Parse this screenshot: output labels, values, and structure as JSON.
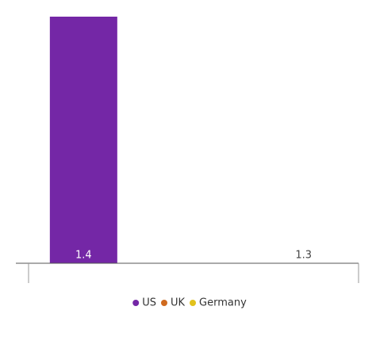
{
  "chart_data": {
    "type": "bar",
    "categories": [
      null
    ],
    "series": [
      {
        "name": "US",
        "color": "#7427a6",
        "values": [
          1.4
        ]
      },
      {
        "name": "UK",
        "color": "#cf6a1f",
        "values": [
          null
        ]
      },
      {
        "name": "Germany",
        "color": "#e2c21c",
        "values": [
          1.3
        ]
      }
    ],
    "ylim": [
      1.3,
      1.4
    ]
  }
}
